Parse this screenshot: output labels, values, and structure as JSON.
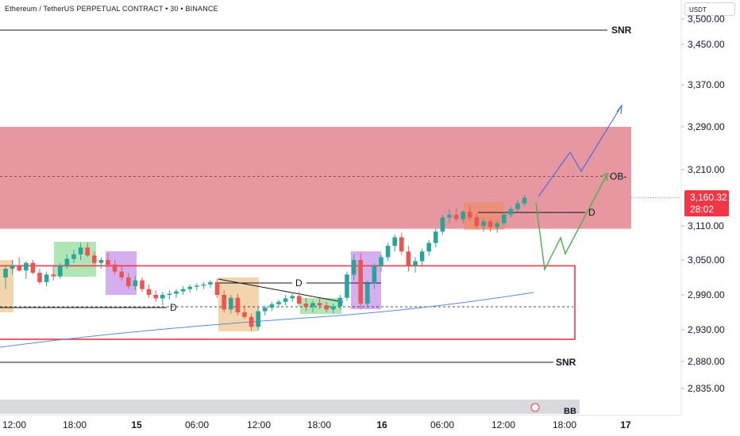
{
  "header": {
    "symbol": "Ethereum / TetherUS PERPETUAL CONTRACT",
    "interval": "30",
    "exchange": "BINANCE",
    "separator": "•",
    "currency": "USDT"
  },
  "last_price": {
    "value": "3,160.32",
    "countdown": "28:02",
    "color": "#f23645"
  },
  "chart_data": {
    "type": "candlestick",
    "y_ticks": [
      "3,500.00",
      "3,450.00",
      "3,370.00",
      "3,290.00",
      "3,210.00",
      "3,110.00",
      "3,050.00",
      "2,990.00",
      "2,930.00",
      "2,880.00",
      "2,835.00"
    ],
    "x_ticks": [
      "12:00",
      "18:00",
      "15",
      "06:00",
      "12:00",
      "18:00",
      "16",
      "06:00",
      "12:00",
      "18:00",
      "17"
    ],
    "bold_x_ticks": [
      "15",
      "16",
      "17"
    ],
    "annotations": {
      "snr_top": {
        "label": "SNR",
        "price": 3500
      },
      "snr_bottom": {
        "label": "SNR",
        "price": 2880
      },
      "ob_zone": {
        "label": "OB-",
        "top": 3290,
        "bottom": 3105,
        "mid": 3198
      },
      "demand_box": {
        "top": 3040,
        "bottom": 2915
      },
      "d_labels": [
        "D",
        "D",
        "D"
      ],
      "bb_label": "BB"
    },
    "colors": {
      "up": "#26a69a",
      "down": "#ef5350",
      "ob": "#e07a84",
      "box": "#f23645",
      "ma": "#5b8bd9",
      "projection_up": "#2962ff",
      "projection_alt": "#4caf50"
    },
    "candles": [
      [
        3020,
        3040,
        3000,
        3035
      ],
      [
        3035,
        3050,
        3025,
        3040
      ],
      [
        3040,
        3055,
        3030,
        3032
      ],
      [
        3032,
        3048,
        3018,
        3045
      ],
      [
        3045,
        3050,
        3025,
        3028
      ],
      [
        3028,
        3035,
        3008,
        3012
      ],
      [
        3012,
        3030,
        3005,
        3025
      ],
      [
        3025,
        3040,
        3015,
        3022
      ],
      [
        3022,
        3045,
        3018,
        3040
      ],
      [
        3040,
        3060,
        3035,
        3052
      ],
      [
        3052,
        3068,
        3045,
        3060
      ],
      [
        3060,
        3080,
        3050,
        3072
      ],
      [
        3072,
        3080,
        3055,
        3058
      ],
      [
        3058,
        3065,
        3040,
        3045
      ],
      [
        3045,
        3055,
        3035,
        3050
      ],
      [
        3050,
        3062,
        3038,
        3042
      ],
      [
        3042,
        3050,
        3025,
        3030
      ],
      [
        3030,
        3040,
        3015,
        3020
      ],
      [
        3020,
        3028,
        3000,
        3005
      ],
      [
        3005,
        3022,
        2998,
        3015
      ],
      [
        3015,
        3020,
        2995,
        3000
      ],
      [
        3000,
        3008,
        2985,
        2990
      ],
      [
        2990,
        2998,
        2978,
        2984
      ],
      [
        2984,
        2995,
        2972,
        2990
      ],
      [
        2990,
        2998,
        2982,
        2992
      ],
      [
        2992,
        3000,
        2985,
        2996
      ],
      [
        2996,
        3005,
        2990,
        3000
      ],
      [
        3000,
        3008,
        2994,
        3004
      ],
      [
        3004,
        3010,
        2998,
        3006
      ],
      [
        3006,
        3012,
        3000,
        3008
      ],
      [
        3008,
        3015,
        3002,
        3012
      ],
      [
        3012,
        3018,
        2985,
        2990
      ],
      [
        2990,
        2998,
        2960,
        2965
      ],
      [
        2965,
        2990,
        2958,
        2985
      ],
      [
        2985,
        2992,
        2955,
        2960
      ],
      [
        2960,
        2972,
        2948,
        2952
      ],
      [
        2952,
        2958,
        2928,
        2935
      ],
      [
        2935,
        2968,
        2930,
        2962
      ],
      [
        2962,
        2972,
        2955,
        2968
      ],
      [
        2968,
        2978,
        2962,
        2974
      ],
      [
        2974,
        2982,
        2968,
        2978
      ],
      [
        2978,
        2990,
        2972,
        2984
      ],
      [
        2984,
        2992,
        2978,
        2988
      ],
      [
        2988,
        2995,
        2970,
        2975
      ],
      [
        2975,
        2985,
        2962,
        2970
      ],
      [
        2970,
        2980,
        2960,
        2976
      ],
      [
        2976,
        2984,
        2966,
        2972
      ],
      [
        2972,
        2978,
        2960,
        2965
      ],
      [
        2965,
        2975,
        2958,
        2970
      ],
      [
        2970,
        2990,
        2965,
        2985
      ],
      [
        2985,
        3030,
        2980,
        3025
      ],
      [
        3025,
        3060,
        3015,
        3050
      ],
      [
        3050,
        3062,
        2965,
        2975
      ],
      [
        2975,
        3015,
        2968,
        3010
      ],
      [
        3010,
        3045,
        3000,
        3040
      ],
      [
        3040,
        3060,
        3030,
        3055
      ],
      [
        3055,
        3080,
        3048,
        3075
      ],
      [
        3075,
        3095,
        3065,
        3090
      ],
      [
        3090,
        3098,
        3060,
        3065
      ],
      [
        3065,
        3075,
        3030,
        3040
      ],
      [
        3040,
        3055,
        3028,
        3048
      ],
      [
        3048,
        3070,
        3040,
        3065
      ],
      [
        3065,
        3085,
        3058,
        3080
      ],
      [
        3080,
        3105,
        3072,
        3100
      ],
      [
        3100,
        3130,
        3095,
        3125
      ],
      [
        3125,
        3140,
        3115,
        3130
      ],
      [
        3130,
        3142,
        3118,
        3122
      ],
      [
        3122,
        3138,
        3115,
        3135
      ],
      [
        3135,
        3145,
        3120,
        3125
      ],
      [
        3125,
        3132,
        3105,
        3110
      ],
      [
        3110,
        3125,
        3100,
        3118
      ],
      [
        3118,
        3122,
        3100,
        3108
      ],
      [
        3108,
        3120,
        3098,
        3115
      ],
      [
        3115,
        3135,
        3110,
        3130
      ],
      [
        3130,
        3145,
        3125,
        3140
      ],
      [
        3140,
        3155,
        3135,
        3150
      ],
      [
        3150,
        3165,
        3145,
        3160
      ]
    ]
  }
}
